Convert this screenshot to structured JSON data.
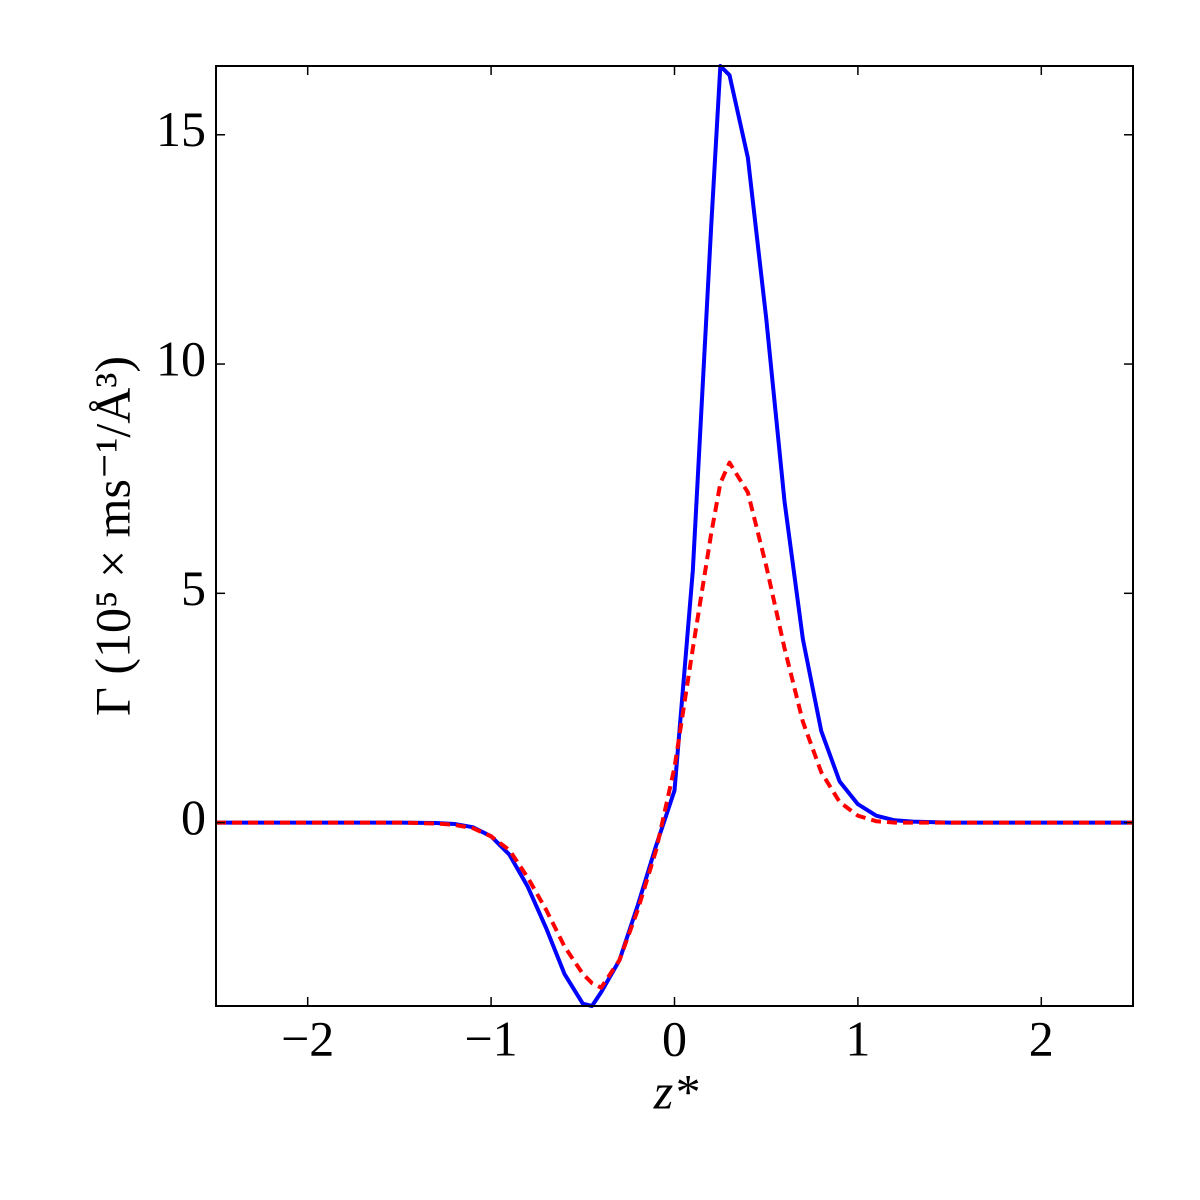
{
  "chart_data": {
    "type": "line",
    "xlabel": "z*",
    "ylabel": "Γ (10⁵ × ms⁻¹/Å³)",
    "x": [
      -2.5,
      -2,
      -1.5,
      -1.3,
      -1.2,
      -1.1,
      -1,
      -0.9,
      -0.8,
      -0.7,
      -0.6,
      -0.5,
      -0.45,
      -0.4,
      -0.3,
      -0.2,
      -0.1,
      0,
      0.1,
      0.2,
      0.25,
      0.3,
      0.4,
      0.5,
      0.6,
      0.7,
      0.8,
      0.9,
      1,
      1.1,
      1.2,
      1.3,
      1.5,
      2,
      2.5
    ],
    "series": [
      {
        "color": "#0000ff",
        "dash": false,
        "values": [
          0,
          0,
          0,
          -0.01,
          -0.03,
          -0.1,
          -0.3,
          -0.7,
          -1.4,
          -2.3,
          -3.3,
          -3.95,
          -4.0,
          -3.7,
          -3.0,
          -1.8,
          -0.5,
          0.7,
          5.5,
          13,
          16.5,
          16.3,
          14.5,
          11,
          7,
          4,
          2,
          0.9,
          0.4,
          0.15,
          0.05,
          0.02,
          0,
          0,
          0
        ]
      },
      {
        "color": "#ff0000",
        "dash": true,
        "values": [
          0,
          0,
          0,
          -0.02,
          -0.05,
          -0.12,
          -0.3,
          -0.6,
          -1.2,
          -1.9,
          -2.7,
          -3.3,
          -3.5,
          -3.6,
          -3.0,
          -1.9,
          -0.6,
          1.2,
          3.8,
          6.3,
          7.4,
          7.85,
          7.2,
          5.6,
          3.8,
          2.2,
          1.1,
          0.45,
          0.15,
          0.03,
          0,
          0,
          0,
          0,
          0
        ]
      }
    ],
    "xlim": [
      -2.5,
      2.5
    ],
    "xticks": [
      {
        "value": -2,
        "label": "−2"
      },
      {
        "value": -1,
        "label": "−1"
      },
      0,
      1,
      2
    ],
    "ylim": [
      -4,
      16.5
    ],
    "yticks": [
      0,
      5,
      10,
      15
    ],
    "grid": false
  }
}
